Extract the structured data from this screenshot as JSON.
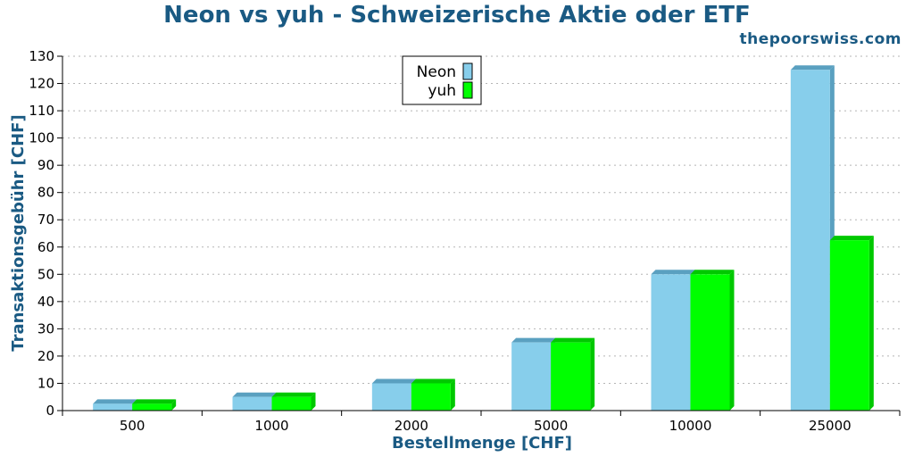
{
  "header": {
    "title": "Neon vs yuh - Schweizerische Aktie oder ETF",
    "site": "thepoorswiss.com"
  },
  "chart_data": {
    "type": "bar",
    "title": "Neon vs yuh - Schweizerische Aktie oder ETF",
    "xlabel": "Bestellmenge [CHF]",
    "ylabel": "Transaktionsgebühr [CHF]",
    "categories": [
      "500",
      "1000",
      "2000",
      "5000",
      "10000",
      "25000"
    ],
    "series": [
      {
        "name": "Neon",
        "values": [
          2.5,
          5,
          10,
          25,
          50,
          125
        ],
        "color": "#87ceeb",
        "side_color": "#5aa0c0"
      },
      {
        "name": "yuh",
        "values": [
          2.5,
          5,
          10,
          25,
          50,
          62.5
        ],
        "color": "#00ff00",
        "side_color": "#00c800"
      }
    ],
    "ylim": [
      0,
      130
    ],
    "yticks": [
      0,
      10,
      20,
      30,
      40,
      50,
      60,
      70,
      80,
      90,
      100,
      110,
      120,
      130
    ],
    "grid": true,
    "legend_position": "top-center"
  }
}
